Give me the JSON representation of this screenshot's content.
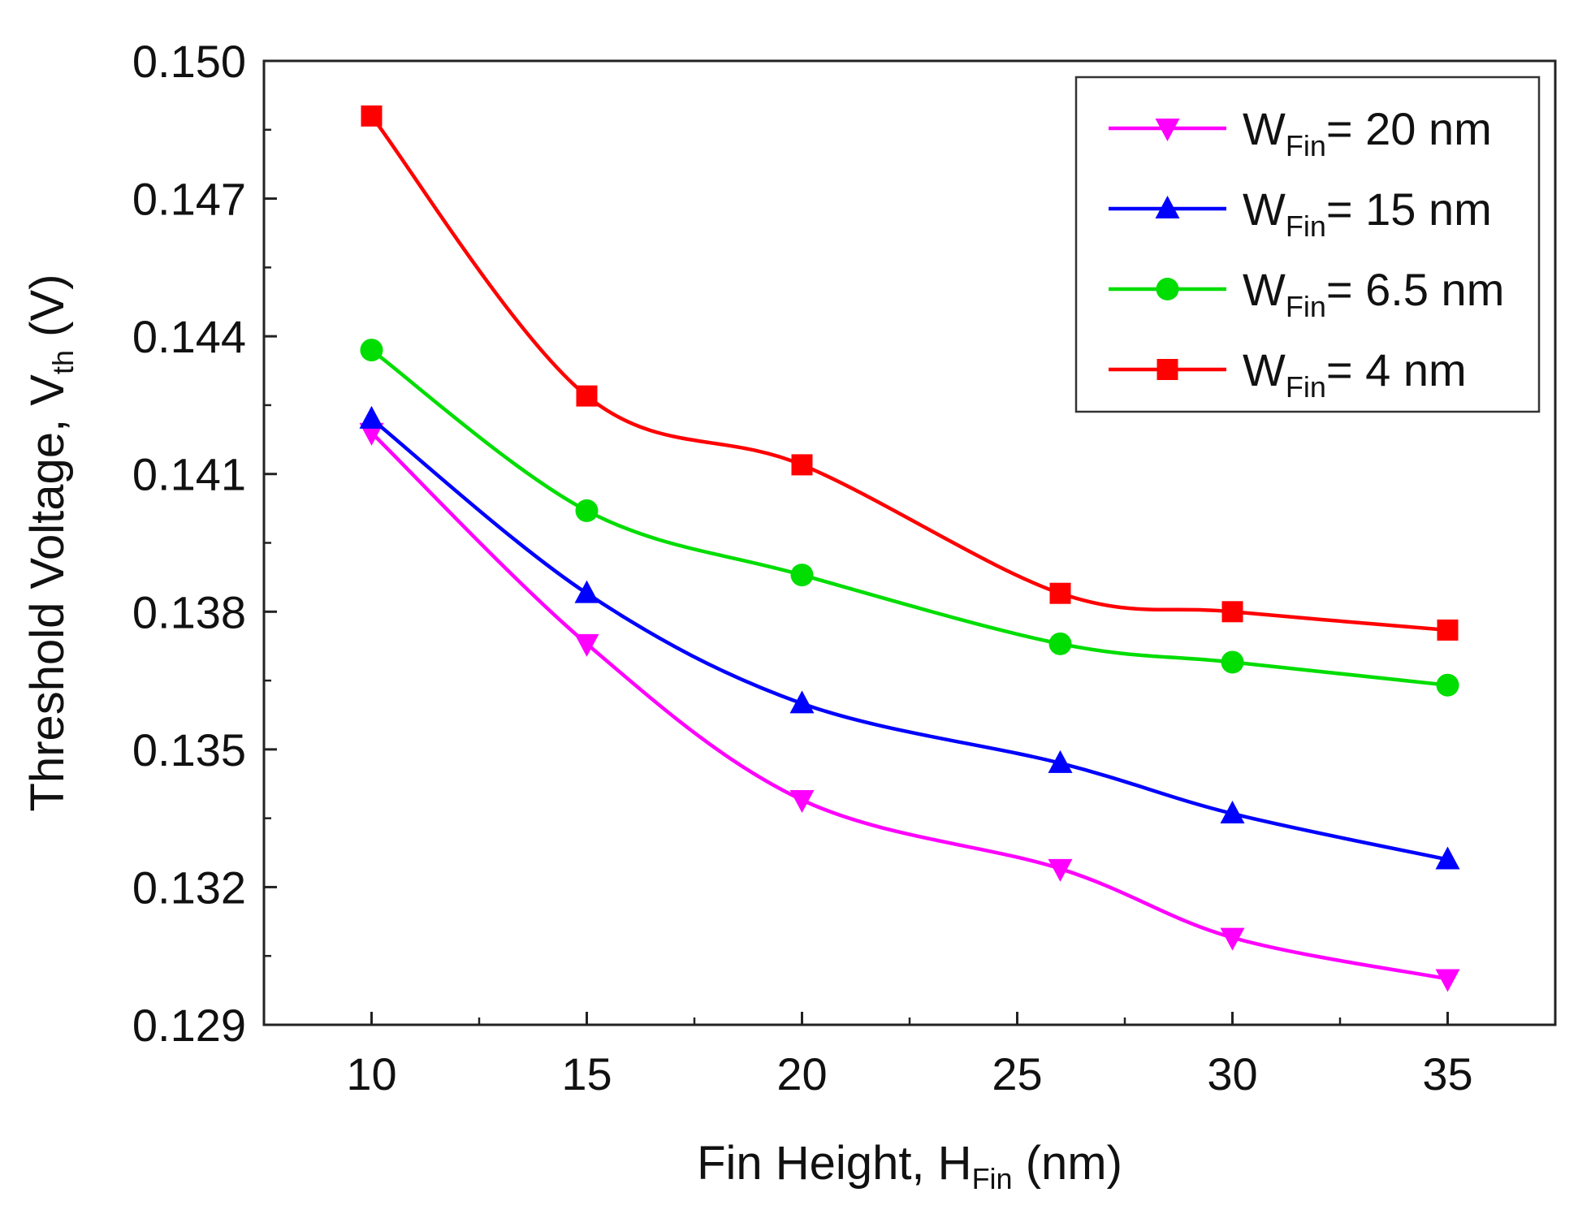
{
  "chart_data": {
    "type": "line",
    "title": "",
    "xlabel": {
      "main": "Fin Height, H",
      "sub": "Fin",
      "unit": " (nm)"
    },
    "ylabel": {
      "main": "Threshold Voltage, V",
      "sub": "th",
      "unit": " (V)"
    },
    "xlim": [
      7.5,
      37.5
    ],
    "ylim": [
      0.129,
      0.15
    ],
    "x_ticks": [
      10,
      15,
      20,
      25,
      30,
      35
    ],
    "x_tick_labels": [
      "10",
      "15",
      "20",
      "25",
      "30",
      "35"
    ],
    "y_ticks": [
      0.129,
      0.132,
      0.135,
      0.138,
      0.141,
      0.144,
      0.147,
      0.15
    ],
    "y_tick_labels": [
      "0.129",
      "0.132",
      "0.135",
      "0.138",
      "0.141",
      "0.144",
      "0.147",
      "0.150"
    ],
    "grid": false,
    "legend_position": "top-right",
    "x": [
      10,
      15,
      20,
      26,
      30,
      35
    ],
    "series": [
      {
        "name": "W",
        "name_sub": "Fin",
        "name_rest": "= 20 nm",
        "color": "#ff00ff",
        "marker": "triangle-down",
        "values": [
          0.1419,
          0.1373,
          0.1339,
          0.1324,
          0.1309,
          0.13
        ]
      },
      {
        "name": "W",
        "name_sub": "Fin",
        "name_rest": "= 15 nm",
        "color": "#0000ff",
        "marker": "triangle-up",
        "values": [
          0.1422,
          0.1384,
          0.136,
          0.1347,
          0.1336,
          0.1326
        ]
      },
      {
        "name": "W",
        "name_sub": "Fin",
        "name_rest": "= 6.5 nm",
        "color": "#00dd00",
        "marker": "circle",
        "values": [
          0.1437,
          0.1402,
          0.1388,
          0.1373,
          0.1369,
          0.1364
        ]
      },
      {
        "name": "W",
        "name_sub": "Fin",
        "name_rest": "= 4 nm",
        "color": "#ff0000",
        "marker": "square",
        "values": [
          0.1488,
          0.1427,
          0.1412,
          0.1384,
          0.138,
          0.1376
        ]
      }
    ]
  }
}
